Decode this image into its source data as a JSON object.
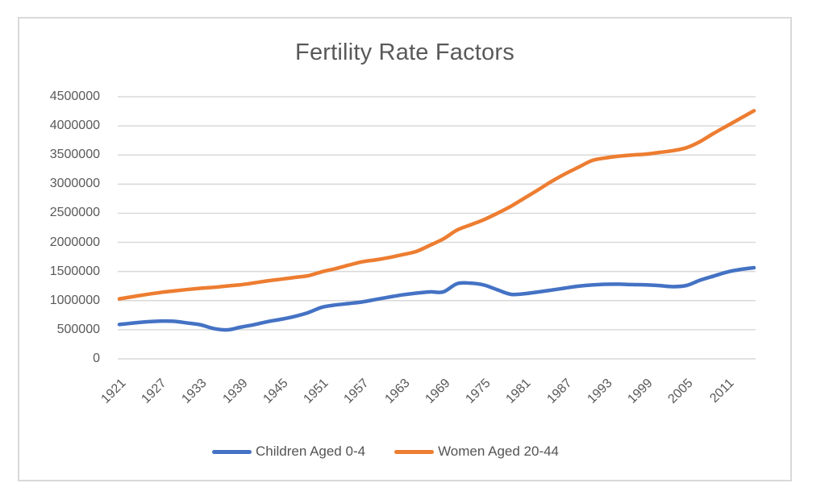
{
  "chart_data": {
    "type": "line",
    "title": "Fertility Rate Factors",
    "xlim": [
      1921,
      2015
    ],
    "ylim": [
      0,
      4500000
    ],
    "grid": true,
    "legend_position": "bottom",
    "x_tick_labels": [
      "1921",
      "1927",
      "1933",
      "1939",
      "1945",
      "1951",
      "1957",
      "1963",
      "1969",
      "1975",
      "1981",
      "1987",
      "1993",
      "1999",
      "2005",
      "2011"
    ],
    "y_tick_labels": [
      "0",
      "500000",
      "1000000",
      "1500000",
      "2000000",
      "2500000",
      "3000000",
      "3500000",
      "4000000",
      "4500000"
    ],
    "x": [
      1921,
      1923,
      1925,
      1927,
      1929,
      1931,
      1933,
      1935,
      1937,
      1939,
      1941,
      1943,
      1945,
      1947,
      1949,
      1951,
      1953,
      1955,
      1957,
      1959,
      1961,
      1963,
      1965,
      1967,
      1969,
      1971,
      1973,
      1975,
      1977,
      1979,
      1981,
      1983,
      1985,
      1987,
      1989,
      1991,
      1993,
      1995,
      1997,
      1999,
      2001,
      2003,
      2005,
      2007,
      2009,
      2011,
      2013,
      2015
    ],
    "series": [
      {
        "name": "Children Aged 0-4",
        "color": "#4472C4",
        "values": [
          590000,
          615000,
          635000,
          648000,
          645000,
          617000,
          585000,
          520000,
          498000,
          545000,
          588000,
          640000,
          680000,
          730000,
          795000,
          885000,
          925000,
          950000,
          978000,
          1020000,
          1062000,
          1100000,
          1128000,
          1150000,
          1150000,
          1290000,
          1300000,
          1268000,
          1185000,
          1108000,
          1118000,
          1148000,
          1180000,
          1215000,
          1248000,
          1268000,
          1280000,
          1282000,
          1275000,
          1270000,
          1258000,
          1240000,
          1260000,
          1350000,
          1420000,
          1490000,
          1535000,
          1565000
        ]
      },
      {
        "name": "Women Aged 20-44",
        "color": "#ED7D31",
        "values": [
          1030000,
          1068000,
          1105000,
          1138000,
          1165000,
          1190000,
          1212000,
          1228000,
          1252000,
          1272000,
          1305000,
          1340000,
          1368000,
          1398000,
          1428000,
          1495000,
          1548000,
          1610000,
          1668000,
          1700000,
          1740000,
          1790000,
          1845000,
          1950000,
          2060000,
          2210000,
          2300000,
          2390000,
          2500000,
          2620000,
          2760000,
          2900000,
          3045000,
          3175000,
          3290000,
          3405000,
          3450000,
          3480000,
          3500000,
          3515000,
          3545000,
          3575000,
          3625000,
          3730000,
          3870000,
          4000000,
          4130000,
          4260000
        ]
      }
    ],
    "colors": {
      "text": "#595959",
      "gridline": "#D9D9D9",
      "frame_border": "#D9D9D9",
      "background": "#FFFFFF"
    }
  }
}
